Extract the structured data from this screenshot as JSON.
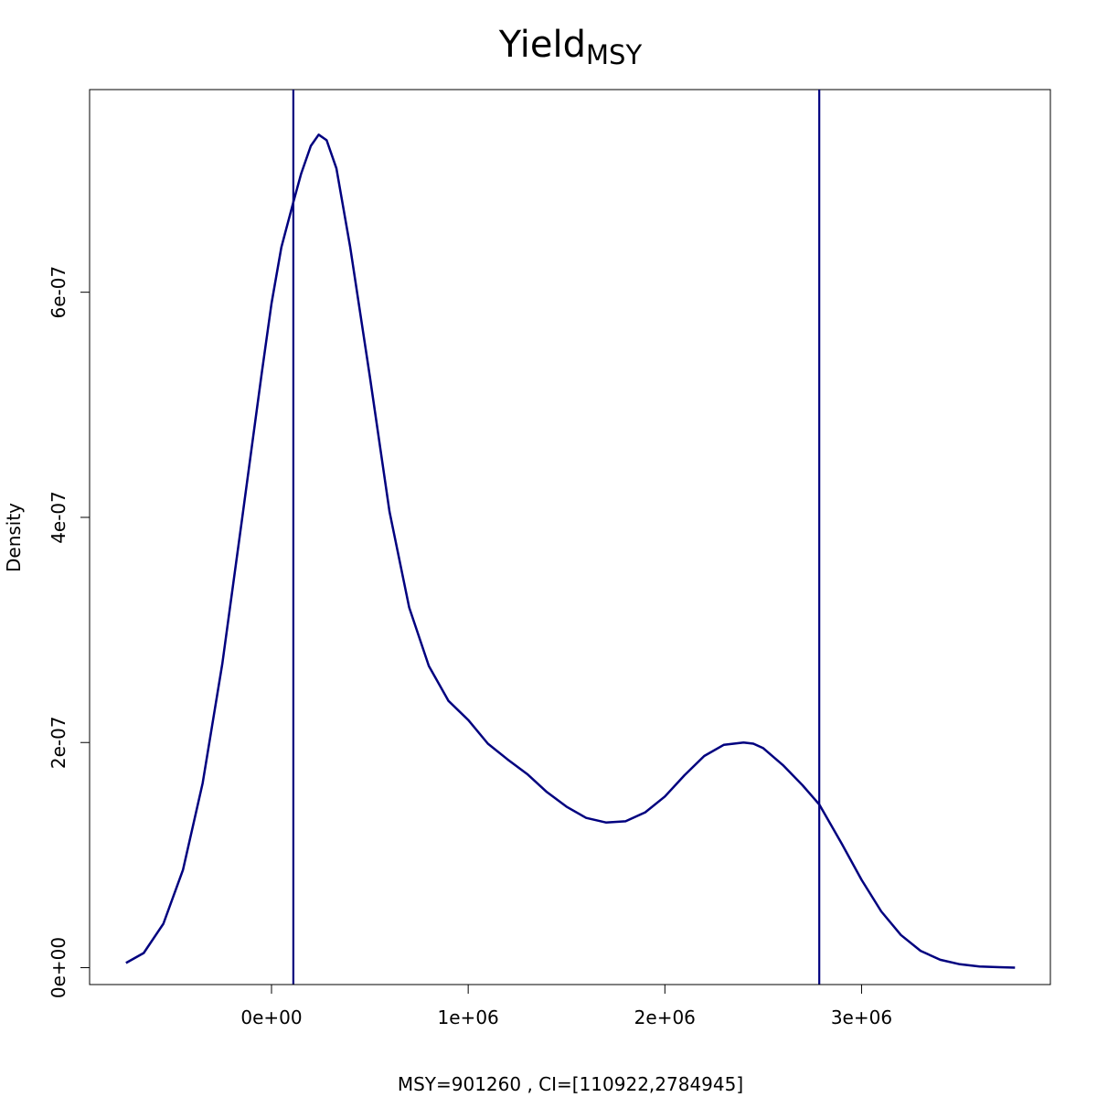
{
  "chart_data": {
    "type": "line",
    "title": "Yield",
    "title_subscript": "MSY",
    "xlabel": "MSY=901260 , CI=[110922,2784945]",
    "ylabel": "Density",
    "xlim": [
      -925000,
      3960000
    ],
    "ylim": [
      -1.5e-08,
      7.8e-07
    ],
    "x_ticks": [
      0,
      1000000,
      2000000,
      3000000
    ],
    "x_tick_labels": [
      "0e+00",
      "1e+06",
      "2e+06",
      "3e+06"
    ],
    "y_ticks": [
      0,
      2e-07,
      4e-07,
      6e-07
    ],
    "y_tick_labels": [
      "0e+00",
      "2e-07",
      "4e-07",
      "6e-07"
    ],
    "grid": false,
    "line_color": "#00007F",
    "vlines": [
      110922,
      2784945
    ],
    "series": [
      {
        "x": [
          -740000,
          -650000,
          -550000,
          -450000,
          -350000,
          -250000,
          -150000,
          -50000,
          0,
          50000,
          110922,
          150000,
          200000,
          240000,
          280000,
          330000,
          400000,
          500000,
          600000,
          700000,
          800000,
          900000,
          1000000,
          1100000,
          1200000,
          1300000,
          1400000,
          1500000,
          1600000,
          1700000,
          1800000,
          1900000,
          2000000,
          2100000,
          2200000,
          2300000,
          2400000,
          2450000,
          2500000,
          2600000,
          2700000,
          2784945,
          2900000,
          3000000,
          3100000,
          3200000,
          3300000,
          3400000,
          3500000,
          3600000,
          3700000,
          3780000
        ],
        "y": [
          4.2e-09,
          1.3e-08,
          3.9e-08,
          8.7e-08,
          1.64e-07,
          2.7e-07,
          3.98e-07,
          5.28e-07,
          5.9e-07,
          6.4e-07,
          6.8e-07,
          7.05e-07,
          7.3e-07,
          7.4e-07,
          7.35e-07,
          7.1e-07,
          6.4e-07,
          5.25e-07,
          4.05e-07,
          3.2e-07,
          2.68e-07,
          2.37e-07,
          2.2e-07,
          1.99e-07,
          1.85e-07,
          1.72e-07,
          1.56e-07,
          1.43e-07,
          1.33e-07,
          1.29e-07,
          1.3e-07,
          1.38e-07,
          1.52e-07,
          1.71e-07,
          1.88e-07,
          1.98e-07,
          2e-07,
          1.99e-07,
          1.95e-07,
          1.8e-07,
          1.62e-07,
          1.45e-07,
          1.1e-07,
          7.8e-08,
          5e-08,
          2.9e-08,
          1.5e-08,
          7e-09,
          3e-09,
          1e-09,
          4e-10,
          0
        ]
      }
    ]
  }
}
